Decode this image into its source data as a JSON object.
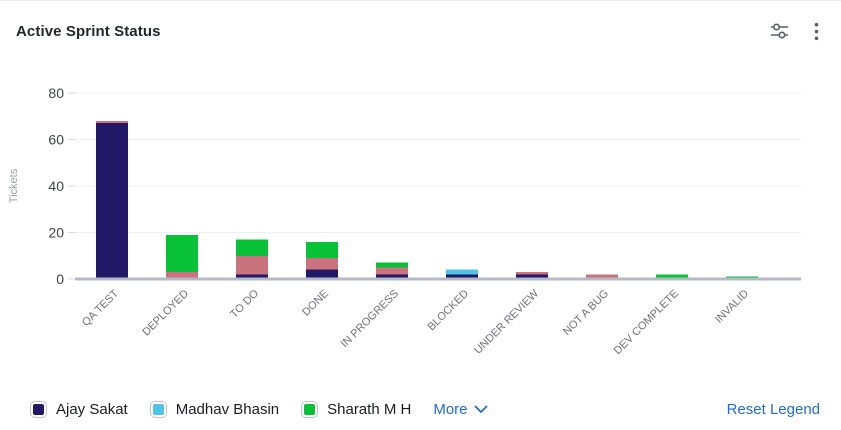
{
  "header": {
    "title": "Active Sprint Status"
  },
  "chart_data": {
    "type": "bar",
    "stacked": true,
    "title": "Active Sprint Status",
    "xlabel": "",
    "ylabel": "Tickets",
    "ylim": [
      0,
      80
    ],
    "yticks": [
      0,
      20,
      40,
      60,
      80
    ],
    "grid": true,
    "legend_position": "bottom",
    "categories": [
      "QA TEST",
      "DEPLOYED",
      "TO DO",
      "DONE",
      "IN PROGRESS",
      "BLOCKED",
      "UNDER REVIEW",
      "NOT A BUG",
      "DEV COMPLETE",
      "INVALID"
    ],
    "series": [
      {
        "name": "Ajay Sakat",
        "color": "#221866",
        "values": [
          67,
          0,
          2,
          4,
          2,
          2,
          2,
          0,
          0,
          0
        ]
      },
      {
        "name": "Madhav Bhasin",
        "color": "#4FC3E8",
        "values": [
          0,
          0,
          0,
          0,
          0,
          2,
          0,
          0,
          0,
          0
        ]
      },
      {
        "name": "",
        "color": "#C9737F",
        "values": [
          1,
          3,
          8,
          5,
          3,
          0,
          1,
          2,
          0,
          0
        ]
      },
      {
        "name": "Sharath M H",
        "color": "#08C136",
        "values": [
          0,
          16,
          7,
          7,
          2,
          0,
          0,
          0,
          2,
          1
        ]
      }
    ]
  },
  "legend": {
    "items": [
      {
        "label": "Ajay Sakat",
        "color": "#221866"
      },
      {
        "label": "Madhav Bhasin",
        "color": "#4FC3E8"
      },
      {
        "label": "Sharath M H",
        "color": "#08C136"
      }
    ],
    "more_label": "More",
    "reset_label": "Reset Legend",
    "link_color": "#1F6BD9"
  },
  "colors": {
    "title_text": "#24272E",
    "y_tick_text": "#3F4249",
    "x_tick_text": "#6E7177",
    "axis_title_text": "#9BA0A6",
    "gridline": "#EFEFF1",
    "tick_mark": "#D6D8DB",
    "baseline": "#B4BAC6",
    "icon": "#595D64"
  }
}
